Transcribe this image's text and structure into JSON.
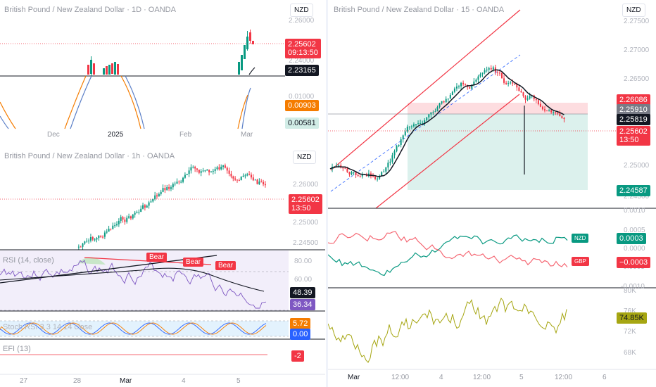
{
  "daily": {
    "title": "British Pound / New Zealand Dollar · 1D · OANDA",
    "currency": "NZD",
    "axis_ticks": [
      "2.26000",
      "2.24000",
      "0.01000"
    ],
    "price_tag": "2.25602",
    "price_countdown": "09:13:50",
    "ref_tag": "2.23165",
    "ind_tag_orange": "0.00903",
    "ind_tag_teal": "0.00581",
    "time_ticks": [
      "Dec",
      "2025",
      "Feb",
      "Mar"
    ]
  },
  "hourly": {
    "title": "British Pound / New Zealand Dollar · 1h · OANDA",
    "currency": "NZD",
    "axis_ticks": [
      "2.26000",
      "2.25000",
      "2.24500"
    ],
    "price_tag": "2.25602",
    "price_countdown": "13:50",
    "rsi_label": "RSI (14, close)",
    "rsi_ticks": [
      "80.00",
      "60.00"
    ],
    "rsi_tag_black": "48.39",
    "rsi_tag_purple": "36.34",
    "bear_labels": [
      "Bear",
      "Bear",
      "Bear"
    ],
    "stoch_label": "Stoch RSI 3 3 14 14 close",
    "stoch_tag_orange": "5.72",
    "stoch_tag_blue": "0.00",
    "efi_label": "EFI (13)",
    "efi_tag": "-2",
    "time_ticks": [
      "27",
      "28",
      "Mar",
      "4",
      "5"
    ]
  },
  "m15": {
    "title": "British Pound / New Zealand Dollar · 15 · OANDA",
    "currency": "NZD",
    "axis_ticks": [
      "2.27500",
      "2.27000",
      "2.26500",
      "2.25000",
      "2.24500"
    ],
    "tag_red_top": "2.26086",
    "tag_gray": "2.25910",
    "tag_black": "2.25819",
    "price_tag": "2.25602",
    "price_countdown": "13:50",
    "tag_green": "2.24587",
    "osc_ticks": [
      "0.0010",
      "0.0005",
      "0.0000",
      "-0.0005",
      "-0.0010"
    ],
    "osc_label_nzd": "NZD",
    "osc_label_gbp": "GBP",
    "osc_tag_teal": "0.0003",
    "osc_tag_red": "−0.0003",
    "vol_ticks": [
      "80K",
      "76K",
      "72K",
      "68K"
    ],
    "vol_tag": "74.85K",
    "time_ticks": [
      "Mar",
      "12:00",
      "4",
      "12:00",
      "5",
      "12:00",
      "6"
    ]
  },
  "colors": {
    "red": "#f23645",
    "teal": "#089981",
    "orange": "#f57c00",
    "purple": "#7e57c2",
    "blue": "#2962ff",
    "olive": "#a6a612"
  }
}
